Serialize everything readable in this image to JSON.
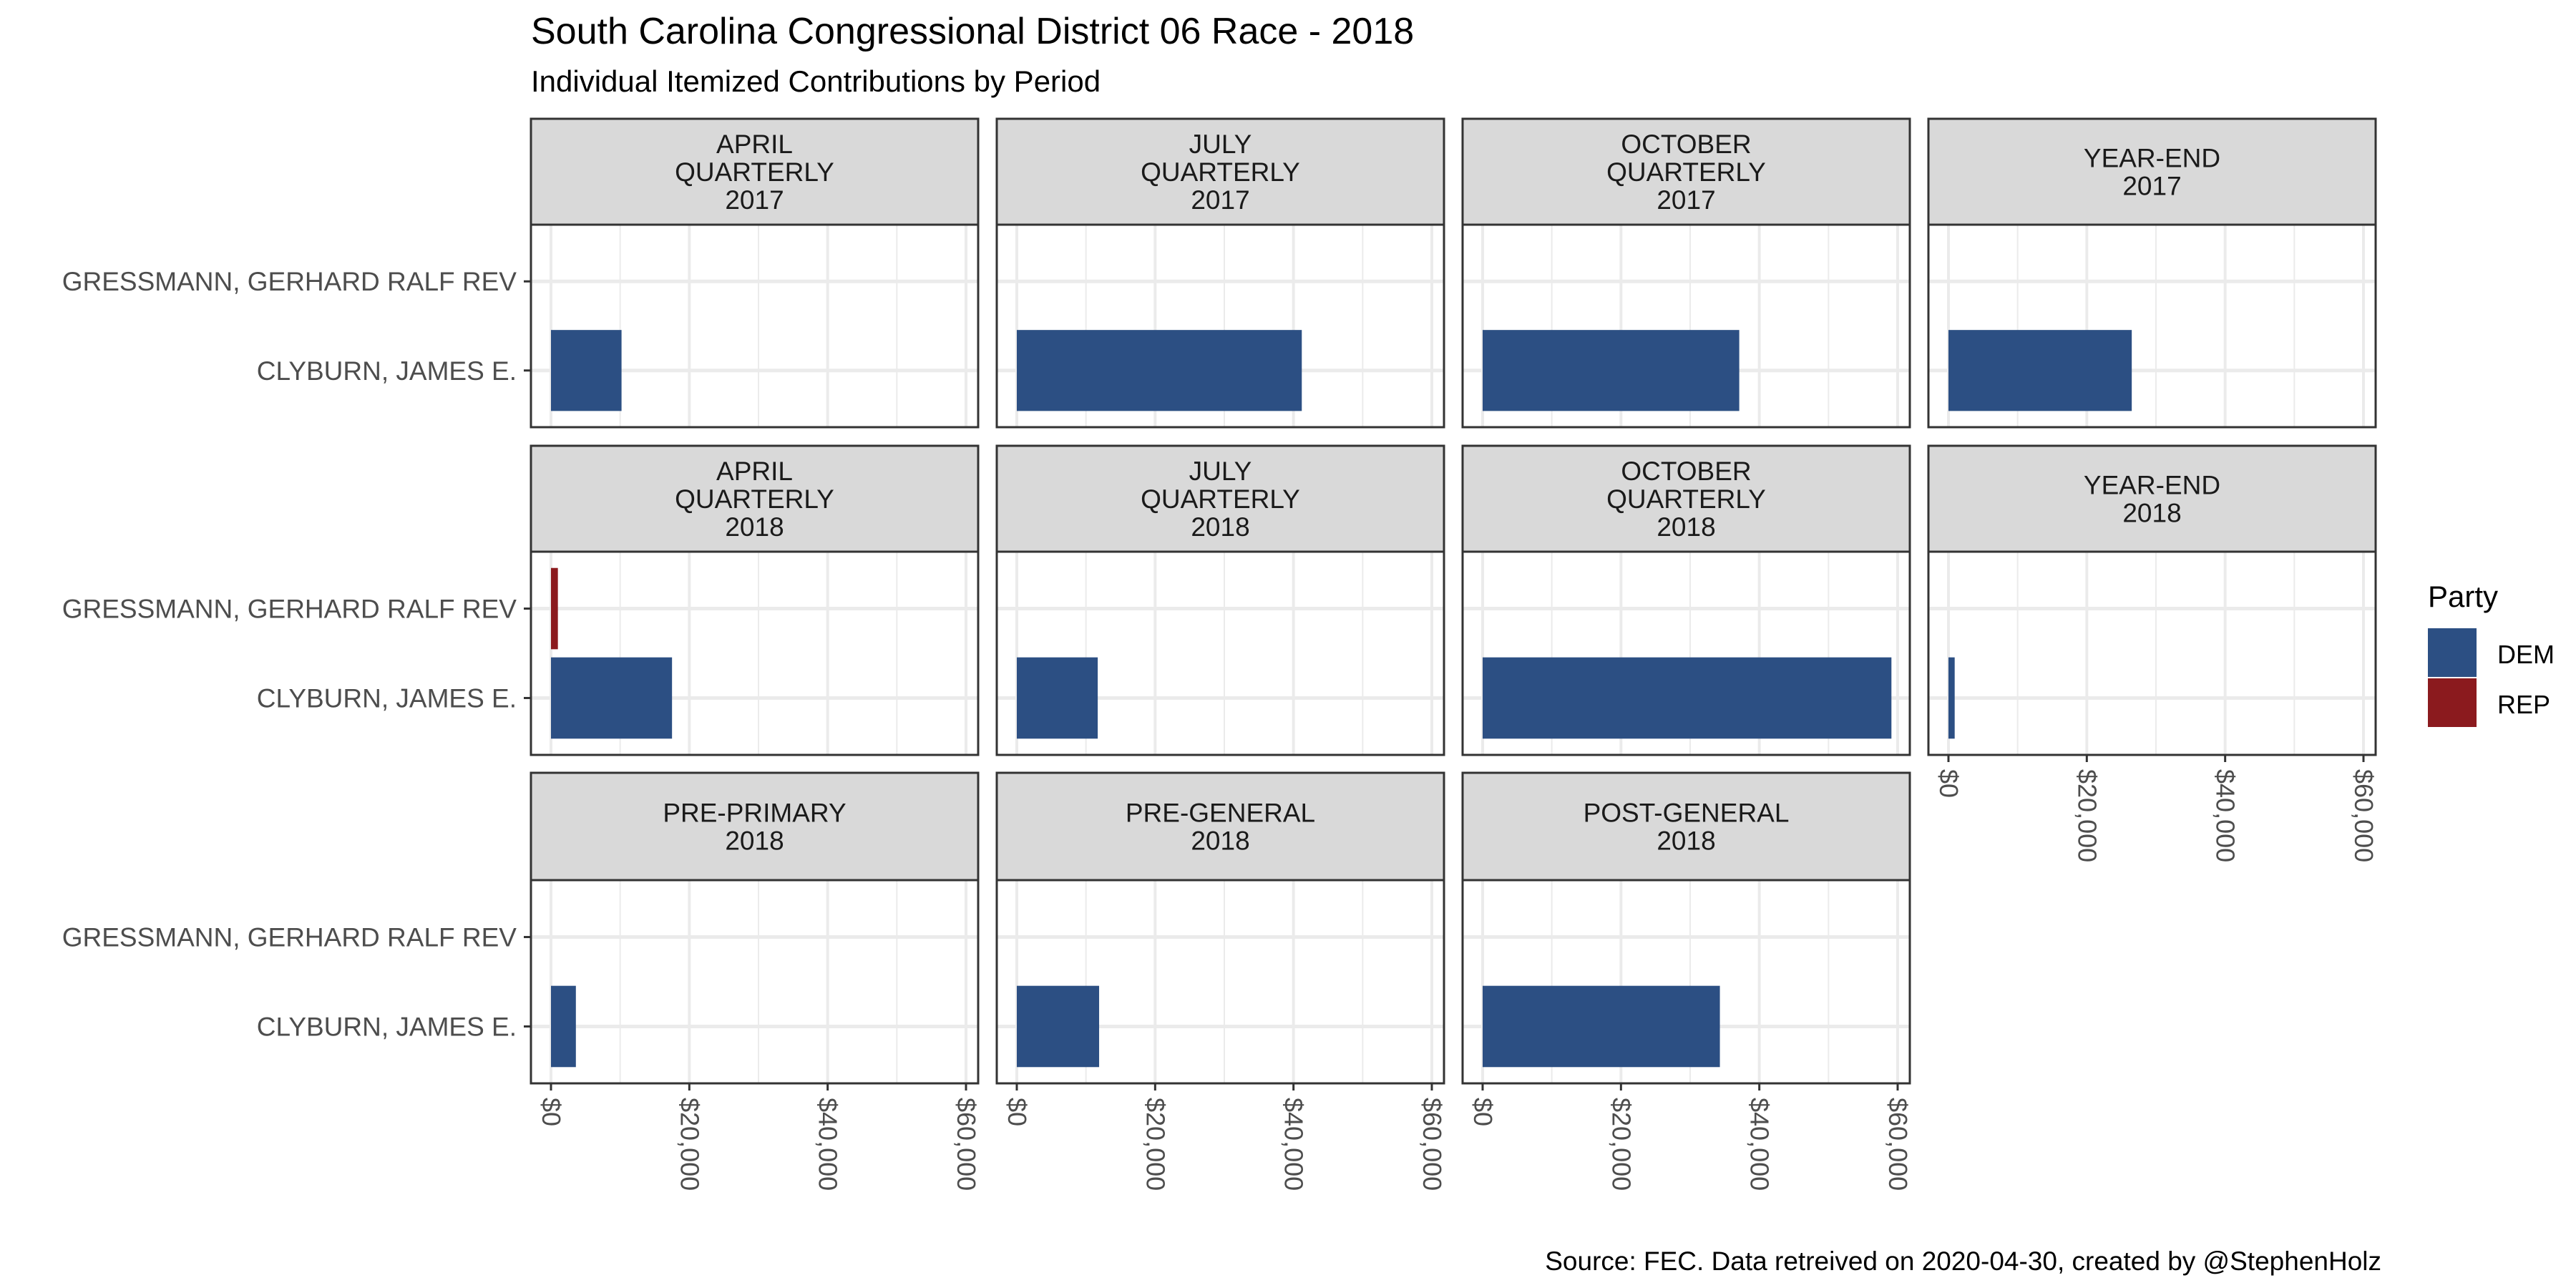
{
  "chart_data": {
    "type": "bar",
    "orientation": "horizontal",
    "title": "South Carolina Congressional District 06 Race - 2018",
    "subtitle": "Individual Itemized Contributions by Period",
    "caption": "Source: FEC. Data retreived on 2020-04-30, created by @StephenHolz",
    "xlabel": "",
    "ylabel": "",
    "xlim": [
      0,
      61000
    ],
    "x_ticks": [
      0,
      20000,
      40000,
      60000
    ],
    "x_tick_labels": [
      "$0",
      "$20,000",
      "$40,000",
      "$60,000"
    ],
    "categories": [
      "GRESSMANN, GERHARD RALF REV",
      "CLYBURN, JAMES E."
    ],
    "grid": true,
    "legend": {
      "title": "Party",
      "position": "right",
      "entries": [
        {
          "label": "DEM",
          "color": "#2C4F83"
        },
        {
          "label": "REP",
          "color": "#8B1A1E"
        }
      ]
    },
    "facets": [
      {
        "label": [
          "APRIL",
          "QUARTERLY",
          "2017"
        ],
        "bars": [
          {
            "candidate": "CLYBURN, JAMES E.",
            "party": "DEM",
            "value": 10200
          }
        ]
      },
      {
        "label": [
          "JULY",
          "QUARTERLY",
          "2017"
        ],
        "bars": [
          {
            "candidate": "CLYBURN, JAMES E.",
            "party": "DEM",
            "value": 41200
          }
        ]
      },
      {
        "label": [
          "OCTOBER",
          "QUARTERLY",
          "2017"
        ],
        "bars": [
          {
            "candidate": "CLYBURN, JAMES E.",
            "party": "DEM",
            "value": 37100
          }
        ]
      },
      {
        "label": [
          "YEAR-END",
          "2017"
        ],
        "bars": [
          {
            "candidate": "CLYBURN, JAMES E.",
            "party": "DEM",
            "value": 26500
          }
        ]
      },
      {
        "label": [
          "APRIL",
          "QUARTERLY",
          "2018"
        ],
        "bars": [
          {
            "candidate": "GRESSMANN, GERHARD RALF REV",
            "party": "REP",
            "value": 1000
          },
          {
            "candidate": "CLYBURN, JAMES E.",
            "party": "DEM",
            "value": 17500
          }
        ]
      },
      {
        "label": [
          "JULY",
          "QUARTERLY",
          "2018"
        ],
        "bars": [
          {
            "candidate": "CLYBURN, JAMES E.",
            "party": "DEM",
            "value": 11700
          }
        ]
      },
      {
        "label": [
          "OCTOBER",
          "QUARTERLY",
          "2018"
        ],
        "bars": [
          {
            "candidate": "CLYBURN, JAMES E.",
            "party": "DEM",
            "value": 59100
          }
        ]
      },
      {
        "label": [
          "YEAR-END",
          "2018"
        ],
        "bars": [
          {
            "candidate": "CLYBURN, JAMES E.",
            "party": "DEM",
            "value": 900
          }
        ]
      },
      {
        "label": [
          "PRE-PRIMARY",
          "2018"
        ],
        "bars": [
          {
            "candidate": "CLYBURN, JAMES E.",
            "party": "DEM",
            "value": 3600
          }
        ]
      },
      {
        "label": [
          "PRE-GENERAL",
          "2018"
        ],
        "bars": [
          {
            "candidate": "CLYBURN, JAMES E.",
            "party": "DEM",
            "value": 11900
          }
        ]
      },
      {
        "label": [
          "POST-GENERAL",
          "2018"
        ],
        "bars": [
          {
            "candidate": "CLYBURN, JAMES E.",
            "party": "DEM",
            "value": 34300
          }
        ]
      }
    ]
  }
}
